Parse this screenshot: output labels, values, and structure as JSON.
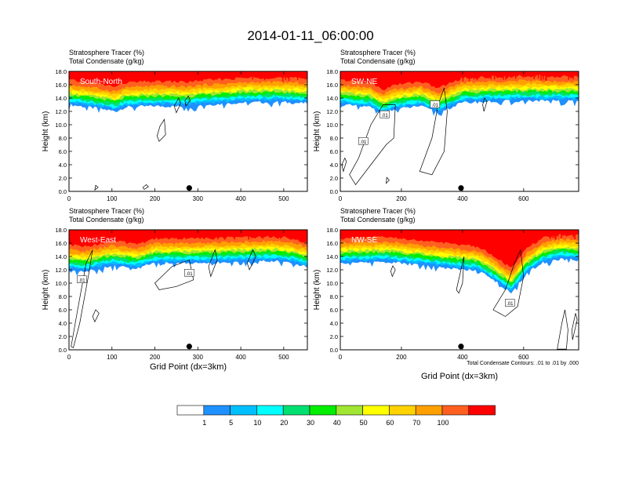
{
  "figure_title": "2014-01-11_06:00:00",
  "colors": {
    "levels": [
      "#ffffff",
      "#1e90ff",
      "#00bfff",
      "#00ffff",
      "#00e070",
      "#00ee00",
      "#a0e632",
      "#ffff00",
      "#ffd200",
      "#ffa000",
      "#ff6020",
      "#ff0000"
    ],
    "contour": "#000000"
  },
  "footnote": "Total Condensate Contours: .01 to .01 by .000",
  "chart_data": [
    {
      "type": "heatmap",
      "title_line1": "Stratosphere Tracer   (%)",
      "title_line2": "Total Condensate   (g/kg)",
      "panel_label": "South-North",
      "xlabel": "",
      "ylabel": "Height (km)",
      "xlim": [
        0,
        555
      ],
      "ylim": [
        0,
        18
      ],
      "xticks": [
        0,
        100,
        200,
        300,
        400,
        500
      ],
      "yticks": [
        "0.0",
        "2.0",
        "4.0",
        "6.0",
        "8.0",
        "10.0",
        "12.0",
        "14.0",
        "16.0",
        "18.0"
      ],
      "marker_x": 280,
      "contour_labels": [],
      "tracer_profile": [
        [
          0,
          13.0
        ],
        [
          60,
          12.5
        ],
        [
          110,
          12.0
        ],
        [
          130,
          12.6
        ],
        [
          200,
          12.8
        ],
        [
          280,
          12.7
        ],
        [
          300,
          12.9
        ],
        [
          400,
          13.3
        ],
        [
          480,
          13.4
        ],
        [
          555,
          13.2
        ]
      ],
      "cloud_contours": [
        [
          [
            210,
            7.5
          ],
          [
            225,
            8.5
          ],
          [
            222,
            10.8
          ],
          [
            212,
            9.8
          ],
          [
            205,
            8.3
          ]
        ],
        [
          [
            250,
            11.8
          ],
          [
            260,
            13.2
          ],
          [
            255,
            14.0
          ],
          [
            245,
            12.8
          ]
        ],
        [
          [
            272,
            12.8
          ],
          [
            282,
            13.6
          ],
          [
            278,
            14.3
          ],
          [
            270,
            13.6
          ]
        ],
        [
          [
            175,
            0.3
          ],
          [
            185,
            0.7
          ],
          [
            180,
            1.0
          ],
          [
            172,
            0.6
          ]
        ],
        [
          [
            60,
            0.2
          ],
          [
            68,
            0.6
          ],
          [
            62,
            0.9
          ]
        ]
      ]
    },
    {
      "type": "heatmap",
      "title_line1": "Stratosphere Tracer   (%)",
      "title_line2": "Total Condensate   (g/kg)",
      "panel_label": "SW-NE",
      "xlabel": "",
      "ylabel": "Height (km)",
      "xlim": [
        0,
        780
      ],
      "ylim": [
        0,
        18
      ],
      "xticks": [
        0,
        200,
        400,
        600
      ],
      "yticks": [
        "0.0",
        "2.0",
        "4.0",
        "6.0",
        "8.0",
        "10.0",
        "12.0",
        "14.0",
        "16.0",
        "18.0"
      ],
      "marker_x": 395,
      "contour_labels": [
        {
          "text": ".01",
          "x": 75,
          "y": 7.5
        },
        {
          "text": ".01",
          "x": 145,
          "y": 11.5
        },
        {
          "text": ".01",
          "x": 310,
          "y": 13.0
        }
      ],
      "tracer_profile": [
        [
          0,
          13.0
        ],
        [
          100,
          12.6
        ],
        [
          140,
          11.5
        ],
        [
          170,
          12.2
        ],
        [
          260,
          12.8
        ],
        [
          320,
          11.8
        ],
        [
          400,
          13.3
        ],
        [
          520,
          13.5
        ],
        [
          620,
          13.6
        ],
        [
          780,
          13.5
        ]
      ],
      "cloud_contours": [
        [
          [
            30,
            2.5
          ],
          [
            60,
            5.0
          ],
          [
            100,
            10.0
          ],
          [
            140,
            13.0
          ],
          [
            180,
            13.0
          ],
          [
            175,
            8.0
          ],
          [
            150,
            7.0
          ],
          [
            100,
            4.0
          ],
          [
            50,
            1.0
          ]
        ],
        [
          [
            260,
            3.0
          ],
          [
            300,
            8.0
          ],
          [
            320,
            13.0
          ],
          [
            340,
            15.5
          ],
          [
            350,
            12.0
          ],
          [
            340,
            6.0
          ],
          [
            300,
            2.5
          ]
        ],
        [
          [
            10,
            3.0
          ],
          [
            20,
            4.5
          ],
          [
            15,
            5.0
          ],
          [
            5,
            4.0
          ]
        ],
        [
          [
            470,
            12.0
          ],
          [
            480,
            13.5
          ],
          [
            472,
            14.0
          ],
          [
            466,
            13.0
          ]
        ],
        [
          [
            150,
            1.2
          ],
          [
            160,
            1.7
          ],
          [
            152,
            2.1
          ]
        ]
      ]
    },
    {
      "type": "heatmap",
      "title_line1": "Stratosphere Tracer   (%)",
      "title_line2": "Total Condensate   (g/kg)",
      "panel_label": "West-East",
      "xlabel": "Grid Point (dx=3km)",
      "ylabel": "Height (km)",
      "xlim": [
        0,
        555
      ],
      "ylim": [
        0,
        18
      ],
      "xticks": [
        0,
        100,
        200,
        300,
        400,
        500
      ],
      "yticks": [
        "0.0",
        "2.0",
        "4.0",
        "6.0",
        "8.0",
        "10.0",
        "12.0",
        "14.0",
        "16.0",
        "18.0"
      ],
      "marker_x": 280,
      "contour_labels": [
        {
          "text": ".01",
          "x": 30,
          "y": 10.5
        },
        {
          "text": ".01",
          "x": 280,
          "y": 11.5
        }
      ],
      "tracer_profile": [
        [
          0,
          12.0
        ],
        [
          40,
          11.8
        ],
        [
          100,
          12.6
        ],
        [
          160,
          12.2
        ],
        [
          200,
          13.0
        ],
        [
          300,
          13.0
        ],
        [
          400,
          13.2
        ],
        [
          480,
          13.3
        ],
        [
          520,
          13.0
        ],
        [
          555,
          12.4
        ]
      ],
      "cloud_contours": [
        [
          [
            5,
            0.5
          ],
          [
            20,
            6.0
          ],
          [
            40,
            13.0
          ],
          [
            55,
            15.0
          ],
          [
            45,
            11.0
          ],
          [
            25,
            4.0
          ],
          [
            10,
            0.3
          ]
        ],
        [
          [
            200,
            10.0
          ],
          [
            240,
            12.5
          ],
          [
            280,
            13.5
          ],
          [
            290,
            10.5
          ],
          [
            250,
            9.5
          ],
          [
            210,
            9.0
          ]
        ],
        [
          [
            330,
            11.0
          ],
          [
            345,
            13.5
          ],
          [
            340,
            15.0
          ],
          [
            325,
            12.5
          ]
        ],
        [
          [
            420,
            12.0
          ],
          [
            435,
            14.0
          ],
          [
            428,
            15.0
          ],
          [
            415,
            13.0
          ]
        ],
        [
          [
            60,
            4.2
          ],
          [
            70,
            5.5
          ],
          [
            62,
            6.0
          ],
          [
            55,
            5.0
          ]
        ]
      ]
    },
    {
      "type": "heatmap",
      "title_line1": "Stratosphere Tracer   (%)",
      "title_line2": "Total Condensate   (g/kg)",
      "panel_label": "NW-SE",
      "xlabel": "Grid Point (dx=3km)",
      "ylabel": "Height (km)",
      "xlim": [
        0,
        780
      ],
      "ylim": [
        0,
        18
      ],
      "xticks": [
        0,
        200,
        400,
        600
      ],
      "yticks": [
        "0.0",
        "2.0",
        "4.0",
        "6.0",
        "8.0",
        "10.0",
        "12.0",
        "14.0",
        "16.0",
        "18.0"
      ],
      "marker_x": 395,
      "contour_labels": [
        {
          "text": ".01",
          "x": 555,
          "y": 7.0
        }
      ],
      "tracer_profile": [
        [
          0,
          13.0
        ],
        [
          150,
          13.2
        ],
        [
          300,
          12.5
        ],
        [
          450,
          11.8
        ],
        [
          500,
          10.5
        ],
        [
          560,
          8.5
        ],
        [
          610,
          11.5
        ],
        [
          660,
          13.0
        ],
        [
          720,
          13.6
        ],
        [
          780,
          13.4
        ]
      ],
      "cloud_contours": [
        [
          [
            500,
            6.0
          ],
          [
            540,
            9.0
          ],
          [
            570,
            13.0
          ],
          [
            590,
            15.0
          ],
          [
            600,
            11.0
          ],
          [
            580,
            6.5
          ],
          [
            540,
            5.0
          ]
        ],
        [
          [
            710,
            0.1
          ],
          [
            725,
            4.0
          ],
          [
            735,
            6.0
          ],
          [
            745,
            3.0
          ],
          [
            740,
            0.1
          ]
        ],
        [
          [
            380,
            9.0
          ],
          [
            395,
            12.0
          ],
          [
            405,
            14.0
          ],
          [
            400,
            10.0
          ],
          [
            388,
            8.5
          ]
        ],
        [
          [
            760,
            1.5
          ],
          [
            775,
            4.5
          ],
          [
            770,
            5.5
          ],
          [
            758,
            3.0
          ]
        ],
        [
          [
            170,
            11.0
          ],
          [
            180,
            12.0
          ],
          [
            172,
            12.6
          ],
          [
            165,
            11.8
          ]
        ]
      ]
    }
  ],
  "colorbar": {
    "labels": [
      "1",
      "5",
      "10",
      "20",
      "30",
      "40",
      "50",
      "60",
      "70",
      "100"
    ]
  }
}
